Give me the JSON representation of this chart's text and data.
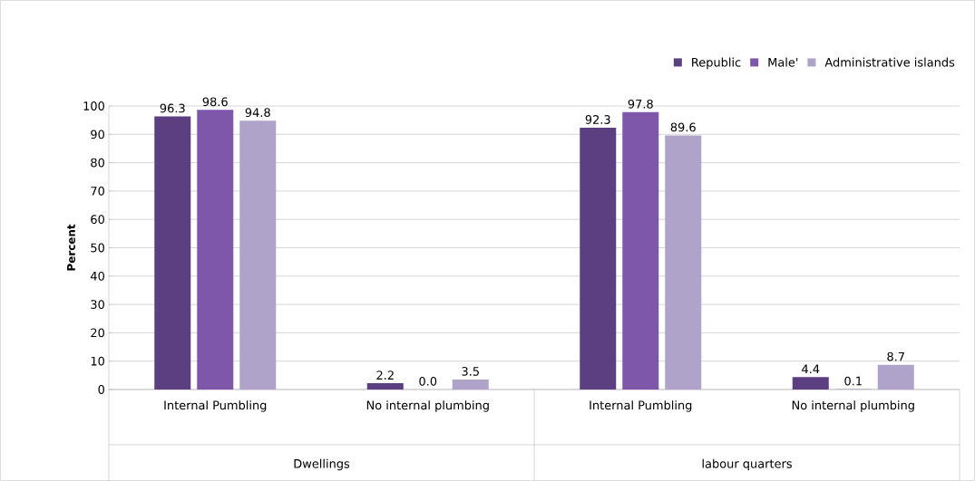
{
  "chart_data": {
    "type": "bar",
    "ylabel": "Percent",
    "categories": [
      "Internal Pumbling",
      "No internal plumbing",
      "Internal Pumbling",
      "No internal plumbing"
    ],
    "annotations": [
      "Dwellings",
      "labour quarters"
    ],
    "series": [
      {
        "name": "Republic",
        "color": "#5b3f80",
        "values": [
          96.3,
          2.2,
          92.3,
          4.4
        ],
        "value_labels": [
          "96.3",
          "2.2",
          "92.3",
          "4.4"
        ]
      },
      {
        "name": "Male'",
        "color": "#7e57ab",
        "values": [
          98.6,
          0.0,
          97.8,
          0.1
        ],
        "value_labels": [
          "98.6",
          "0.0",
          "97.8",
          "0.1"
        ]
      },
      {
        "name": "Administrative islands",
        "color": "#b0a3c9",
        "values": [
          94.8,
          3.5,
          89.6,
          8.7
        ],
        "value_labels": [
          "94.8",
          "3.5",
          "89.6",
          "8.7"
        ]
      }
    ],
    "ylim": [
      0,
      100
    ],
    "yticks": [
      0,
      10,
      20,
      30,
      40,
      50,
      60,
      70,
      80,
      90,
      100
    ],
    "grid": "y",
    "legend": "top right"
  }
}
